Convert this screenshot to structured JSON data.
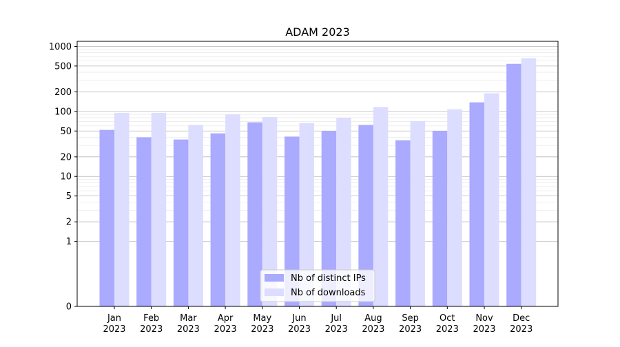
{
  "chart_data": {
    "type": "bar",
    "title": "ADAM 2023",
    "xlabel": "",
    "ylabel": "",
    "yscale": "symlog",
    "ylim": [
      0,
      1200
    ],
    "yticks": [
      0,
      1,
      2,
      5,
      10,
      20,
      50,
      100,
      200,
      500,
      1000
    ],
    "grid": "horizontal",
    "legend_position": "bottom-center",
    "categories": [
      [
        "Jan",
        "2023"
      ],
      [
        "Feb",
        "2023"
      ],
      [
        "Mar",
        "2023"
      ],
      [
        "Apr",
        "2023"
      ],
      [
        "May",
        "2023"
      ],
      [
        "Jun",
        "2023"
      ],
      [
        "Jul",
        "2023"
      ],
      [
        "Aug",
        "2023"
      ],
      [
        "Sep",
        "2023"
      ],
      [
        "Oct",
        "2023"
      ],
      [
        "Nov",
        "2023"
      ],
      [
        "Dec",
        "2023"
      ]
    ],
    "series": [
      {
        "name": "Nb of distinct IPs",
        "color": "#aaaaff",
        "values": [
          52,
          40,
          37,
          46,
          68,
          41,
          50,
          62,
          36,
          50,
          138,
          540
        ]
      },
      {
        "name": "Nb of downloads",
        "color": "#ddddff",
        "values": [
          95,
          95,
          62,
          90,
          82,
          66,
          80,
          117,
          71,
          108,
          190,
          660
        ]
      }
    ]
  }
}
